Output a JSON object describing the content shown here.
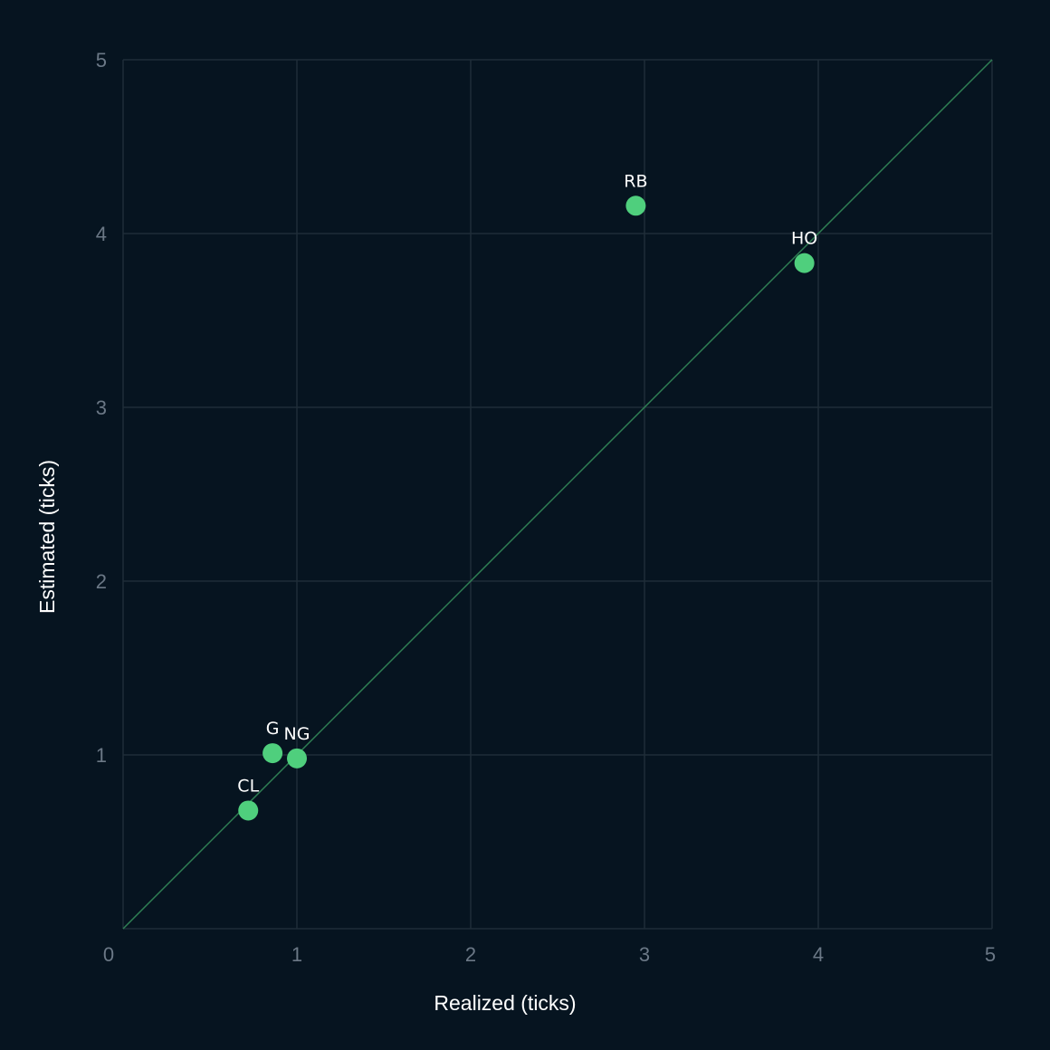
{
  "chart_data": {
    "type": "scatter",
    "xlabel": "Realized (ticks)",
    "ylabel": "Estimated (ticks)",
    "xlim": [
      0,
      5
    ],
    "ylim": [
      0,
      5
    ],
    "x_ticks": [
      "0",
      "1",
      "2",
      "3",
      "4",
      "5"
    ],
    "y_ticks": [
      "1",
      "2",
      "3",
      "4",
      "5"
    ],
    "grid": true,
    "reference_line": "y = x",
    "colors": {
      "background": "#061420",
      "grid": "#1f2d38",
      "reference_line": "#2f7f54",
      "points": "#4fcf7d"
    },
    "points": [
      {
        "label": "RB",
        "x": 2.95,
        "y": 4.16
      },
      {
        "label": "HO",
        "x": 3.92,
        "y": 3.83
      },
      {
        "label": "G",
        "x": 0.86,
        "y": 1.01
      },
      {
        "label": "NG",
        "x": 1.0,
        "y": 0.98
      },
      {
        "label": "CL",
        "x": 0.72,
        "y": 0.68
      }
    ]
  }
}
